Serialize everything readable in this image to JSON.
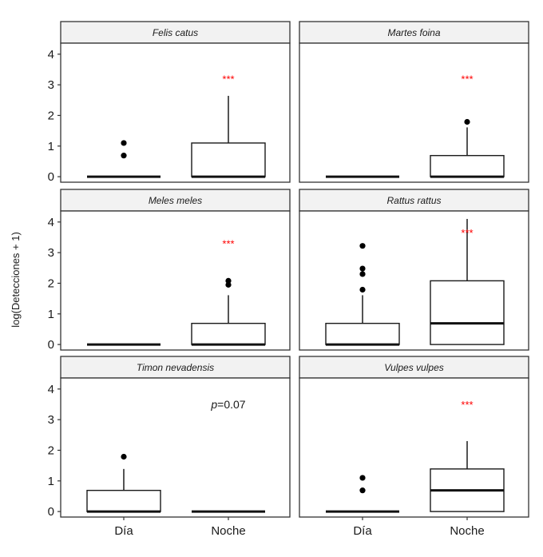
{
  "chart_data": {
    "type": "boxplot",
    "layout": "facet grid 3 rows x 2 columns",
    "ylabel": "log(Detecciones + 1)",
    "xlabel": "",
    "categories": [
      "Día",
      "Noche"
    ],
    "yticks": [
      0,
      1,
      2,
      3,
      4
    ],
    "ylim": [
      -0.18,
      4.36
    ],
    "grid": false,
    "significance_color": "#ff0000",
    "strip_fill": "#f2f2f2",
    "panels": [
      {
        "title": "Felis catus",
        "annotation": {
          "text": "***",
          "kind": "stars",
          "y": 3.2
        },
        "boxes": [
          {
            "category": "Día",
            "q1": 0,
            "median": 0,
            "q3": 0,
            "whisker_low": 0,
            "whisker_high": 0,
            "outliers": [
              0.69,
              1.1
            ]
          },
          {
            "category": "Noche",
            "q1": 0,
            "median": 0,
            "q3": 1.1,
            "whisker_low": 0,
            "whisker_high": 2.64,
            "outliers": []
          }
        ]
      },
      {
        "title": "Martes foina",
        "annotation": {
          "text": "***",
          "kind": "stars",
          "y": 3.2
        },
        "boxes": [
          {
            "category": "Día",
            "q1": 0,
            "median": 0,
            "q3": 0,
            "whisker_low": 0,
            "whisker_high": 0,
            "outliers": []
          },
          {
            "category": "Noche",
            "q1": 0,
            "median": 0,
            "q3": 0.69,
            "whisker_low": 0,
            "whisker_high": 1.61,
            "outliers": [
              1.79
            ]
          }
        ]
      },
      {
        "title": "Meles meles",
        "annotation": {
          "text": "***",
          "kind": "stars",
          "y": 3.3
        },
        "boxes": [
          {
            "category": "Día",
            "q1": 0,
            "median": 0,
            "q3": 0,
            "whisker_low": 0,
            "whisker_high": 0,
            "outliers": []
          },
          {
            "category": "Noche",
            "q1": 0,
            "median": 0,
            "q3": 0.69,
            "whisker_low": 0,
            "whisker_high": 1.61,
            "outliers": [
              1.95,
              2.08
            ]
          }
        ]
      },
      {
        "title": "Rattus rattus",
        "annotation": {
          "text": "***",
          "kind": "stars",
          "y": 3.65
        },
        "boxes": [
          {
            "category": "Día",
            "q1": 0,
            "median": 0,
            "q3": 0.69,
            "whisker_low": 0,
            "whisker_high": 1.61,
            "outliers": [
              1.79,
              2.3,
              2.48,
              3.22
            ]
          },
          {
            "category": "Noche",
            "q1": 0,
            "median": 0.69,
            "q3": 2.08,
            "whisker_low": 0,
            "whisker_high": 4.1,
            "outliers": []
          }
        ]
      },
      {
        "title": "Timon nevadensis",
        "annotation": {
          "text_italic": "p",
          "text_rest": "=0.07",
          "kind": "pvalue",
          "y": 3.5
        },
        "boxes": [
          {
            "category": "Día",
            "q1": 0,
            "median": 0,
            "q3": 0.69,
            "whisker_low": 0,
            "whisker_high": 1.39,
            "outliers": [
              1.79
            ]
          },
          {
            "category": "Noche",
            "q1": 0,
            "median": 0,
            "q3": 0,
            "whisker_low": 0,
            "whisker_high": 0,
            "outliers": []
          }
        ]
      },
      {
        "title": "Vulpes vulpes",
        "annotation": {
          "text": "***",
          "kind": "stars",
          "y": 3.5
        },
        "boxes": [
          {
            "category": "Día",
            "q1": 0,
            "median": 0,
            "q3": 0,
            "whisker_low": 0,
            "whisker_high": 0,
            "outliers": [
              0.69,
              1.1
            ]
          },
          {
            "category": "Noche",
            "q1": 0,
            "median": 0.69,
            "q3": 1.39,
            "whisker_low": 0,
            "whisker_high": 2.3,
            "outliers": []
          }
        ]
      }
    ]
  }
}
